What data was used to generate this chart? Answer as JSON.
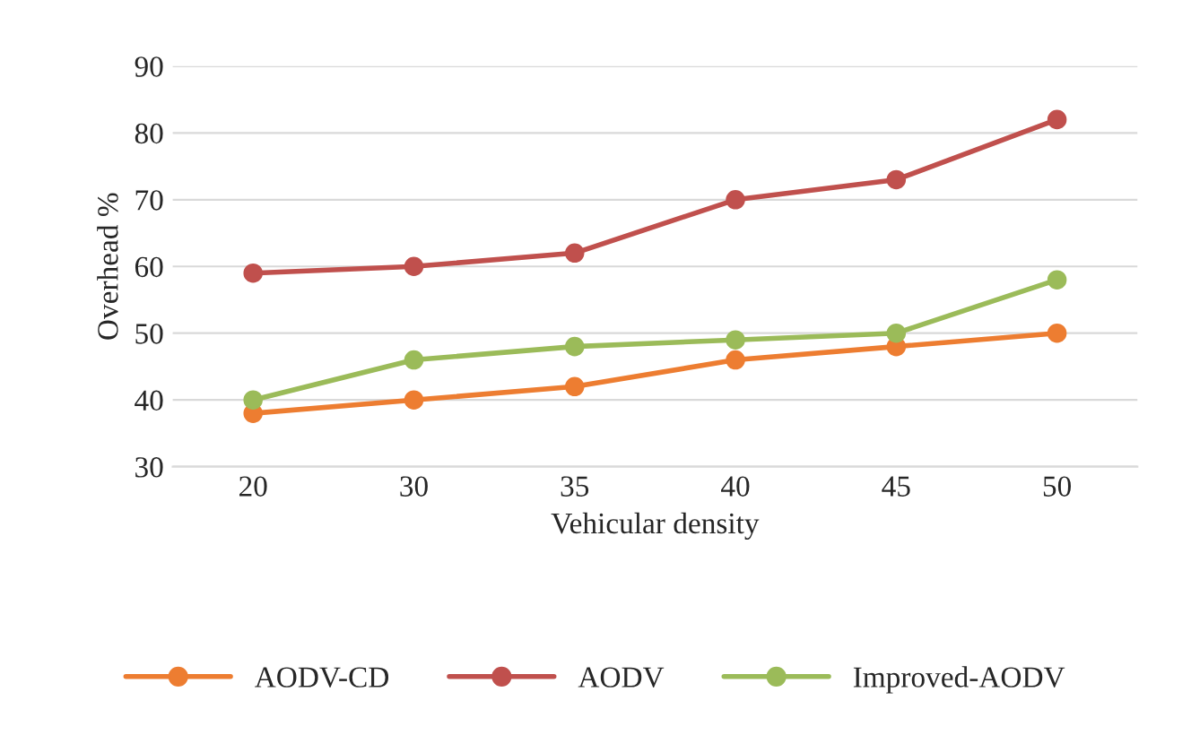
{
  "chart_data": {
    "type": "line",
    "xlabel": "Vehicular density",
    "ylabel": "Overhead %",
    "categories": [
      "20",
      "30",
      "35",
      "40",
      "45",
      "50"
    ],
    "series": [
      {
        "name": "AODV-CD",
        "color": "#ed7d31",
        "values": [
          38,
          40,
          42,
          46,
          48,
          50
        ]
      },
      {
        "name": "AODV",
        "color": "#c0504d",
        "values": [
          59,
          60,
          62,
          70,
          73,
          82
        ]
      },
      {
        "name": "Improved-AODV",
        "color": "#9bbb59",
        "values": [
          40,
          46,
          48,
          49,
          50,
          58
        ]
      }
    ],
    "ylim": [
      30,
      90
    ],
    "yticks": [
      30,
      40,
      50,
      60,
      70,
      80,
      90
    ],
    "grid": "y",
    "legend": "bottom",
    "marker": "circle",
    "line_style": "solid"
  }
}
